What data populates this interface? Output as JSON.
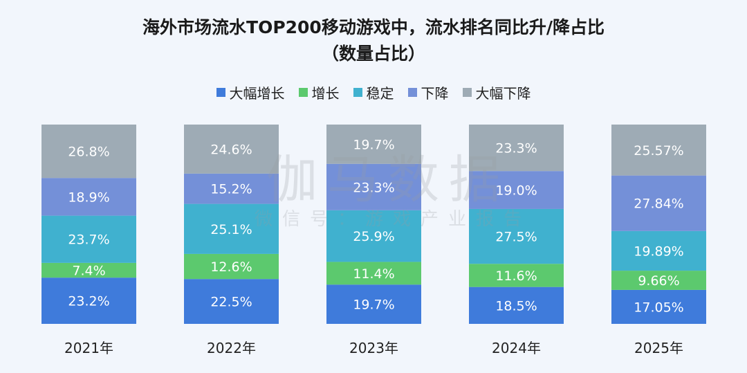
{
  "chart_data": {
    "type": "bar",
    "stacked": true,
    "title": "海外市场流水TOP200移动游戏中，流水排名同比升/降占比",
    "subtitle": "（数量占比）",
    "categories": [
      "2021年",
      "2022年",
      "2023年",
      "2024年",
      "2025年"
    ],
    "series": [
      {
        "name": "大幅增长",
        "color": "#3f7bdb",
        "values": [
          23.2,
          22.5,
          19.7,
          18.5,
          17.05
        ],
        "labels": [
          "23.2%",
          "22.5%",
          "19.7%",
          "18.5%",
          "17.05%"
        ]
      },
      {
        "name": "增长",
        "color": "#5cc96e",
        "values": [
          7.4,
          12.6,
          11.4,
          11.6,
          9.66
        ],
        "labels": [
          "7.4%",
          "12.6%",
          "11.4%",
          "11.6%",
          "9.66%"
        ]
      },
      {
        "name": "稳定",
        "color": "#40b1cf",
        "values": [
          23.7,
          25.1,
          25.9,
          27.5,
          19.89
        ],
        "labels": [
          "23.7%",
          "25.1%",
          "25.9%",
          "27.5%",
          "19.89%"
        ]
      },
      {
        "name": "下降",
        "color": "#7490d8",
        "values": [
          18.9,
          15.2,
          23.3,
          19.0,
          27.84
        ],
        "labels": [
          "18.9%",
          "15.2%",
          "23.3%",
          "19.0%",
          "27.84%"
        ]
      },
      {
        "name": "大幅下降",
        "color": "#9eabb5",
        "values": [
          26.8,
          24.6,
          19.7,
          23.3,
          25.57
        ],
        "labels": [
          "26.8%",
          "24.6%",
          "19.7%",
          "23.3%",
          "25.57%"
        ]
      }
    ],
    "ylim": [
      0,
      100
    ],
    "legend_position": "top",
    "grid": false
  },
  "watermark": {
    "logo": "伽马数据",
    "text": "微信号：游戏产业报告"
  }
}
